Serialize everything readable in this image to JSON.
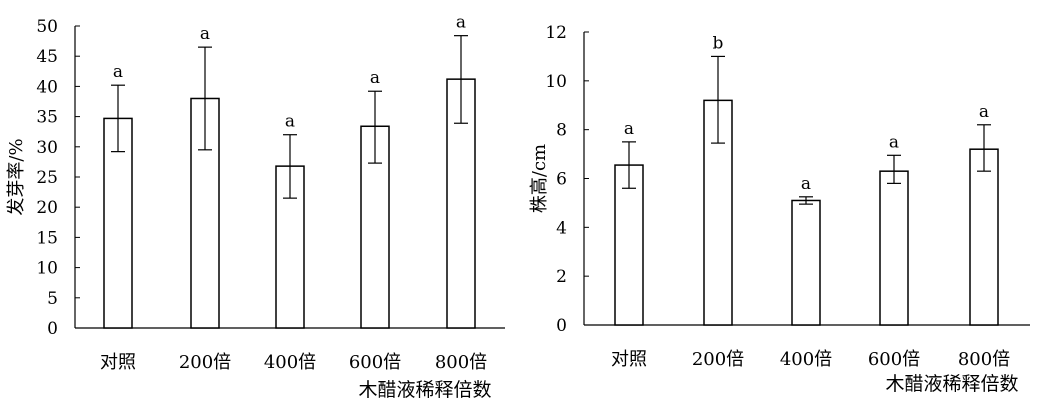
{
  "chart_data": [
    {
      "type": "bar",
      "categories": [
        "对照",
        "200倍",
        "400倍",
        "600倍",
        "800倍"
      ],
      "values": [
        34.7,
        38.0,
        26.8,
        33.4,
        41.2
      ],
      "error_low": [
        29.2,
        29.5,
        21.5,
        27.3,
        33.9
      ],
      "error_high": [
        40.2,
        46.5,
        32.0,
        39.2,
        48.4
      ],
      "significance_labels": [
        "a",
        "a",
        "a",
        "a",
        "a"
      ],
      "ylabel": "发芽率/%",
      "xlabel": "木醋液稀释倍数",
      "ylim": [
        0,
        50
      ],
      "yticks": [
        "0",
        "5",
        "10",
        "15",
        "20",
        "25",
        "30",
        "35",
        "40",
        "45",
        "50"
      ],
      "grid": false,
      "bar_fill": "#ffffff",
      "line_color": "#000000"
    },
    {
      "type": "bar",
      "categories": [
        "对照",
        "200倍",
        "400倍",
        "600倍",
        "800倍"
      ],
      "values": [
        6.55,
        9.2,
        5.1,
        6.3,
        7.2
      ],
      "error_low": [
        5.6,
        7.45,
        4.95,
        5.8,
        6.3
      ],
      "error_high": [
        7.5,
        11.0,
        5.25,
        6.95,
        8.2
      ],
      "significance_labels": [
        "a",
        "b",
        "a",
        "a",
        "a"
      ],
      "ylabel": "株高/cm",
      "xlabel": "木醋液稀释倍数",
      "ylim": [
        0,
        12
      ],
      "yticks": [
        "0",
        "2",
        "4",
        "6",
        "8",
        "10",
        "12"
      ],
      "grid": false,
      "bar_fill": "#ffffff",
      "line_color": "#000000"
    }
  ]
}
